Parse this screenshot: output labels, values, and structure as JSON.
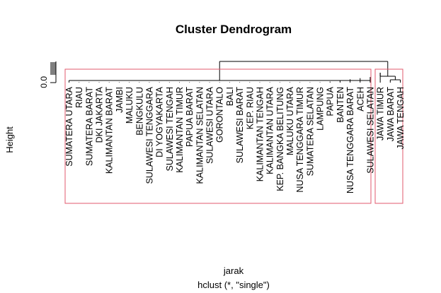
{
  "chart_data": {
    "type": "dendrogram",
    "title": "Cluster Dendrogram",
    "xlabel": "jarak",
    "sublabel": "hclust (*, \"single\")",
    "ylabel": "Height",
    "yticks": [
      "0.0"
    ],
    "k_clusters": 2,
    "cluster_box_color": "#e05a6d",
    "leaves": [
      "SUMATERA UTARA",
      "RIAU",
      "SUMATERA BARAT",
      "DKI JAKARTA",
      "KALIMANTAN BARAT",
      "JAMBI",
      "MALUKU",
      "BENGKULU",
      "SULAWESI TENGGARA",
      "DI YOGYAKARTA",
      "SULAWESI TENGAH",
      "KALIMANTAN TIMUR",
      "PAPUA BARAT",
      "KALIMANTAN SELATAN",
      "SULAWESI UTARA",
      "GORONTALO",
      "BALI",
      "SULAWESI BARAT",
      "KEP. RIAU",
      "KALIMANTAN TENGAH",
      "KALIMANTAN UTARA",
      "KEP. BANGKA BELITUNG",
      "MALUKU UTARA",
      "NUSA TENGGARA TIMUR",
      "SUMATERA SELATAN",
      "LAMPUNG",
      "PAPUA",
      "BANTEN",
      "NUSA TENGGARA BARAT",
      "ACEH",
      "SULAWESI SELATAN",
      "JAWA TIMUR",
      "JAWA BARAT",
      "JAWA TENGAH"
    ],
    "clusters": [
      {
        "first": 0,
        "last": 30
      },
      {
        "first": 31,
        "last": 33
      }
    ]
  }
}
